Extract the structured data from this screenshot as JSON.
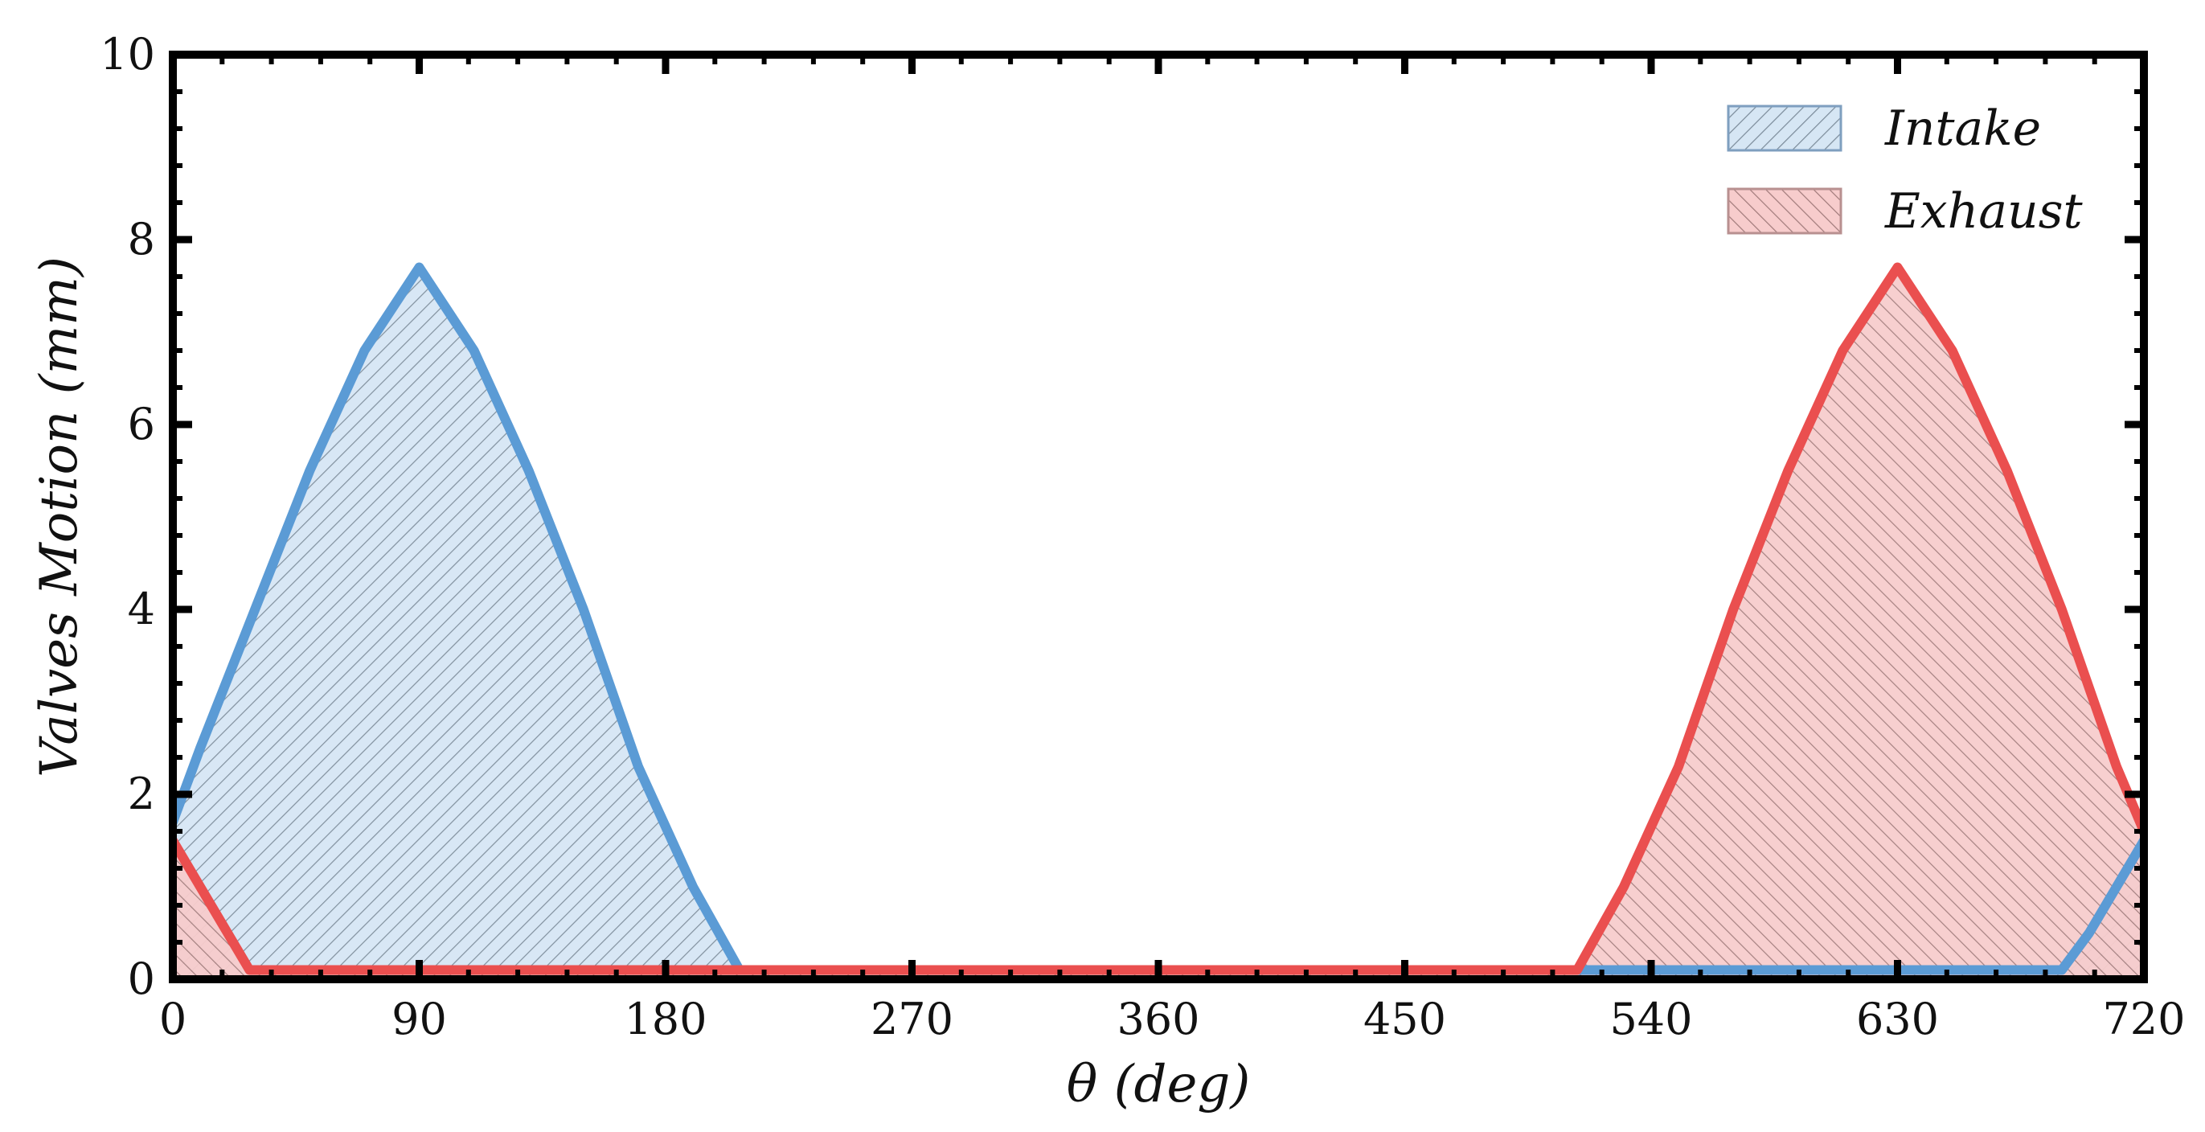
{
  "chart_data": {
    "type": "area",
    "xlabel": "θ (deg)",
    "ylabel": "Valves Motion (mm)",
    "xlim": [
      0,
      720
    ],
    "ylim": [
      0,
      10
    ],
    "xticks": [
      0,
      90,
      180,
      270,
      360,
      450,
      540,
      630,
      720
    ],
    "yticks": [
      0,
      2,
      4,
      6,
      8,
      10
    ],
    "grid": false,
    "legend_position": "top-right",
    "series": [
      {
        "name": "Intake",
        "color": "#5b9bd5",
        "fill": "#d6e6f4",
        "hatch": "////",
        "x": [
          0,
          10,
          30,
          50,
          70,
          90,
          110,
          130,
          150,
          170,
          190,
          207,
          220,
          300,
          400,
          500,
          600,
          690,
          700,
          710,
          720
        ],
        "values": [
          1.7,
          2.5,
          4.0,
          5.5,
          6.8,
          7.7,
          6.8,
          5.5,
          4.0,
          2.3,
          1.0,
          0.1,
          0.1,
          0.1,
          0.1,
          0.1,
          0.1,
          0.1,
          0.5,
          1.0,
          1.5
        ]
      },
      {
        "name": "Exhaust",
        "color": "#ea4f4f",
        "fill": "#f7cccc",
        "hatch": "\\\\\\\\",
        "x": [
          0,
          10,
          28,
          100,
          200,
          300,
          400,
          513,
          530,
          550,
          570,
          590,
          610,
          630,
          650,
          670,
          690,
          710,
          720
        ],
        "values": [
          1.5,
          1.0,
          0.1,
          0.1,
          0.1,
          0.1,
          0.1,
          0.1,
          1.0,
          2.3,
          4.0,
          5.5,
          6.8,
          7.7,
          6.8,
          5.5,
          4.0,
          2.3,
          1.6
        ]
      }
    ]
  }
}
